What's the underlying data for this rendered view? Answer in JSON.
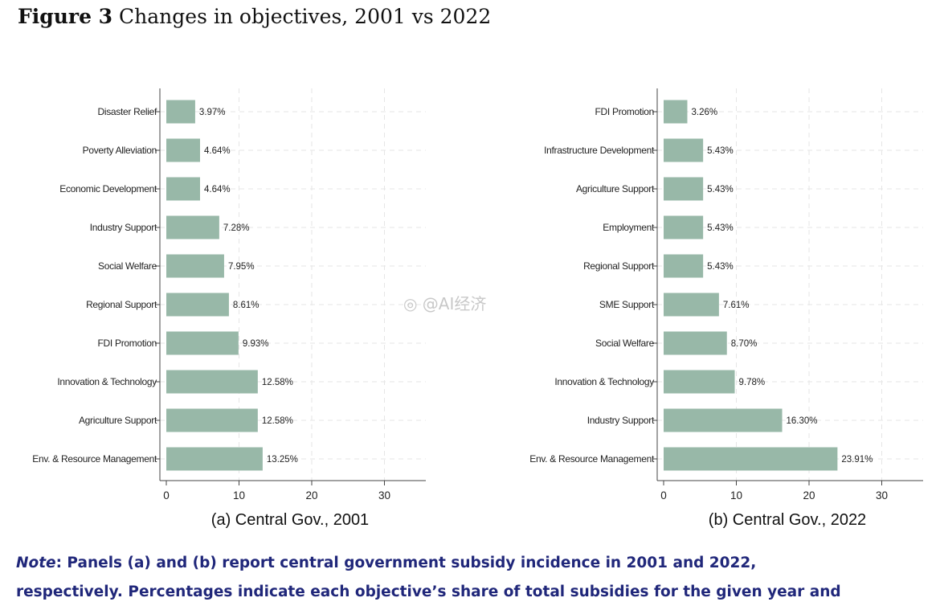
{
  "figure": {
    "label": "Figure 3",
    "title": "Changes in objectives, 2001 vs 2022"
  },
  "watermark": "◎ @AI经济",
  "note": {
    "label": "Note",
    "line1_rest": ": Panels (a) and (b) report central government subsidy incidence in 2001 and 2022,",
    "line2": "respectively. Percentages indicate each objective’s share of total subsidies for the given year and"
  },
  "colors": {
    "bar": "#98b8a8",
    "note_text": "#20277a"
  },
  "chart_data": [
    {
      "type": "bar",
      "orientation": "horizontal",
      "title": "(a) Central Gov., 2001",
      "xlabel": "",
      "ylabel": "",
      "xlim": [
        0,
        35
      ],
      "xticks": [
        0,
        10,
        20,
        30
      ],
      "grid": true,
      "categories": [
        "Disaster Relief",
        "Poverty Alleviation",
        "Economic Development",
        "Industry Support",
        "Social Welfare",
        "Regional Support",
        "FDI Promotion",
        "Innovation & Technology",
        "Agriculture Support",
        "Env. & Resource Management"
      ],
      "values": [
        3.97,
        4.64,
        4.64,
        7.28,
        7.95,
        8.61,
        9.93,
        12.58,
        12.58,
        13.25
      ],
      "value_labels": [
        "3.97%",
        "4.64%",
        "4.64%",
        "7.28%",
        "7.95%",
        "8.61%",
        "9.93%",
        "12.58%",
        "12.58%",
        "13.25%"
      ]
    },
    {
      "type": "bar",
      "orientation": "horizontal",
      "title": "(b) Central Gov., 2022",
      "xlabel": "",
      "ylabel": "",
      "xlim": [
        0,
        35
      ],
      "xticks": [
        0,
        10,
        20,
        30
      ],
      "grid": true,
      "categories": [
        "FDI Promotion",
        "Infrastructure Development",
        "Agriculture Support",
        "Employment",
        "Regional Support",
        "SME Support",
        "Social Welfare",
        "Innovation & Technology",
        "Industry Support",
        "Env. & Resource Management"
      ],
      "values": [
        3.26,
        5.43,
        5.43,
        5.43,
        5.43,
        7.61,
        8.7,
        9.78,
        16.3,
        23.91
      ],
      "value_labels": [
        "3.26%",
        "5.43%",
        "5.43%",
        "5.43%",
        "5.43%",
        "7.61%",
        "8.70%",
        "9.78%",
        "16.30%",
        "23.91%"
      ]
    }
  ]
}
